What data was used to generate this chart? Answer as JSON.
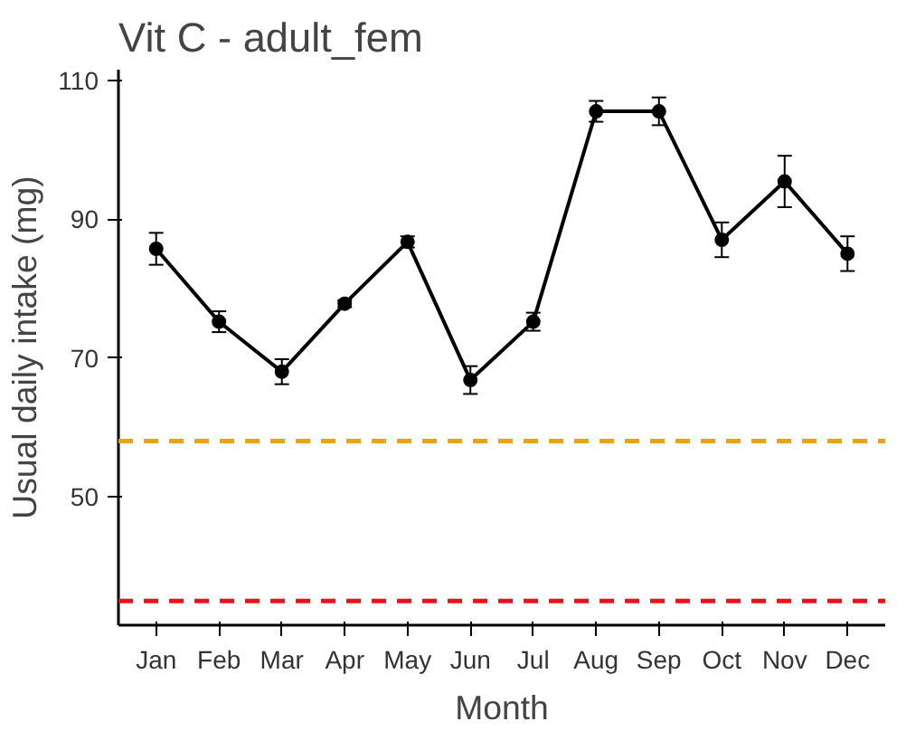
{
  "chart_data": {
    "type": "line",
    "title": "Vit C - adult_fem",
    "xlabel": "Month",
    "ylabel": "Usual daily intake (mg)",
    "categories": [
      "Jan",
      "Feb",
      "Mar",
      "Apr",
      "May",
      "Jun",
      "Jul",
      "Aug",
      "Sep",
      "Oct",
      "Nov",
      "Dec"
    ],
    "series": [
      {
        "color": "#000000",
        "values": [
          85.7,
          75.2,
          68.0,
          77.8,
          86.7,
          66.8,
          75.2,
          105.5,
          105.5,
          87.0,
          95.4,
          85.0
        ],
        "errors": [
          2.3,
          1.5,
          1.8,
          0.5,
          0.8,
          2.0,
          1.3,
          1.5,
          2.0,
          2.5,
          3.7,
          2.5
        ]
      }
    ],
    "marker": "circle",
    "line_style": "solid",
    "ylim": [
      31.5,
      111.5
    ],
    "yticks": [
      50,
      70,
      90,
      110
    ],
    "ref_lines": [
      {
        "axis": "y",
        "value": 58,
        "color": "#e8a317",
        "line_style": "dashed"
      },
      {
        "axis": "y",
        "value": 35,
        "color": "#e8141c",
        "line_style": "dashed"
      }
    ]
  }
}
